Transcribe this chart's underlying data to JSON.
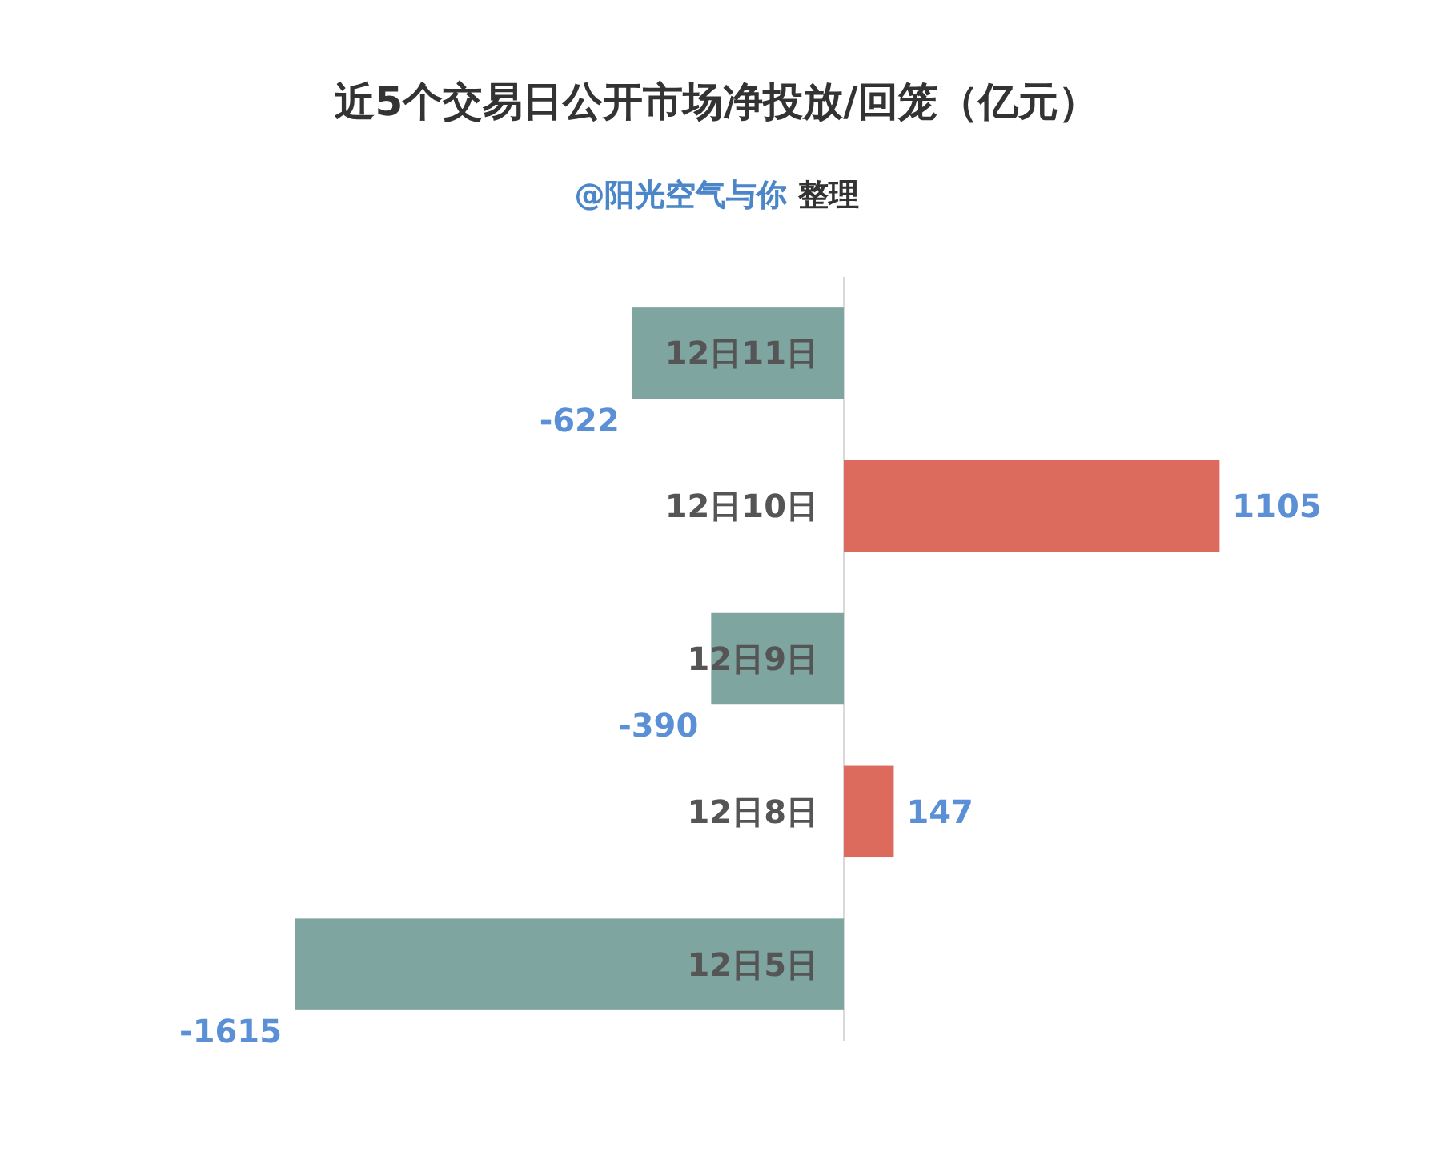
{
  "chart_data": {
    "type": "bar",
    "orientation": "horizontal",
    "title": "近5个交易日公开市场净投放/回笼（亿元）",
    "subtitle": "@阳光空气与你 整理",
    "categories": [
      "12日11日",
      "12日10日",
      "12日9日",
      "12日8日",
      "12日5日"
    ],
    "values": [
      -622,
      1105,
      -390,
      147,
      -1615
    ],
    "colors": [
      "#7fa5a0",
      "#dc6b5e",
      "#7fa5a0",
      "#dc6b5e",
      "#7fa5a0"
    ],
    "data_labels": true
  }
}
